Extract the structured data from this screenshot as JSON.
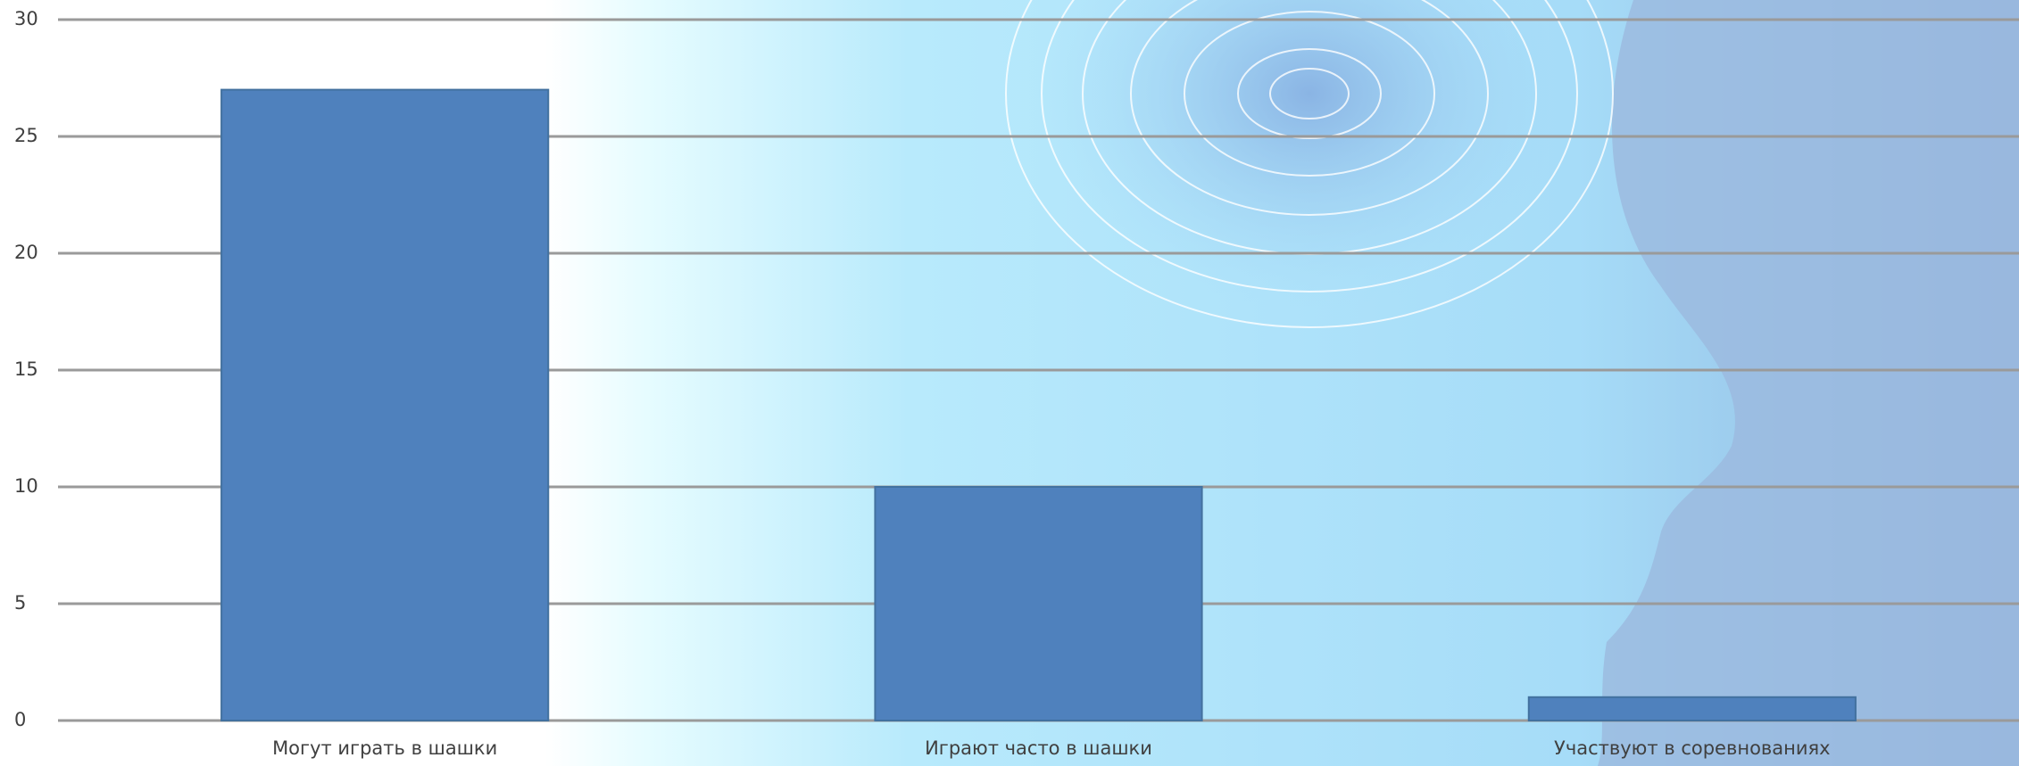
{
  "chart_data": {
    "type": "bar",
    "categories": [
      "Могут играть в шашки",
      "Играют часто в шашки",
      "Участвуют в соревнованиях"
    ],
    "values": [
      27,
      10,
      1
    ],
    "color": "#4f81bd",
    "ylim": [
      0,
      30
    ],
    "yticks": [
      0,
      5,
      10,
      15,
      20,
      25,
      30
    ],
    "grid": true
  }
}
